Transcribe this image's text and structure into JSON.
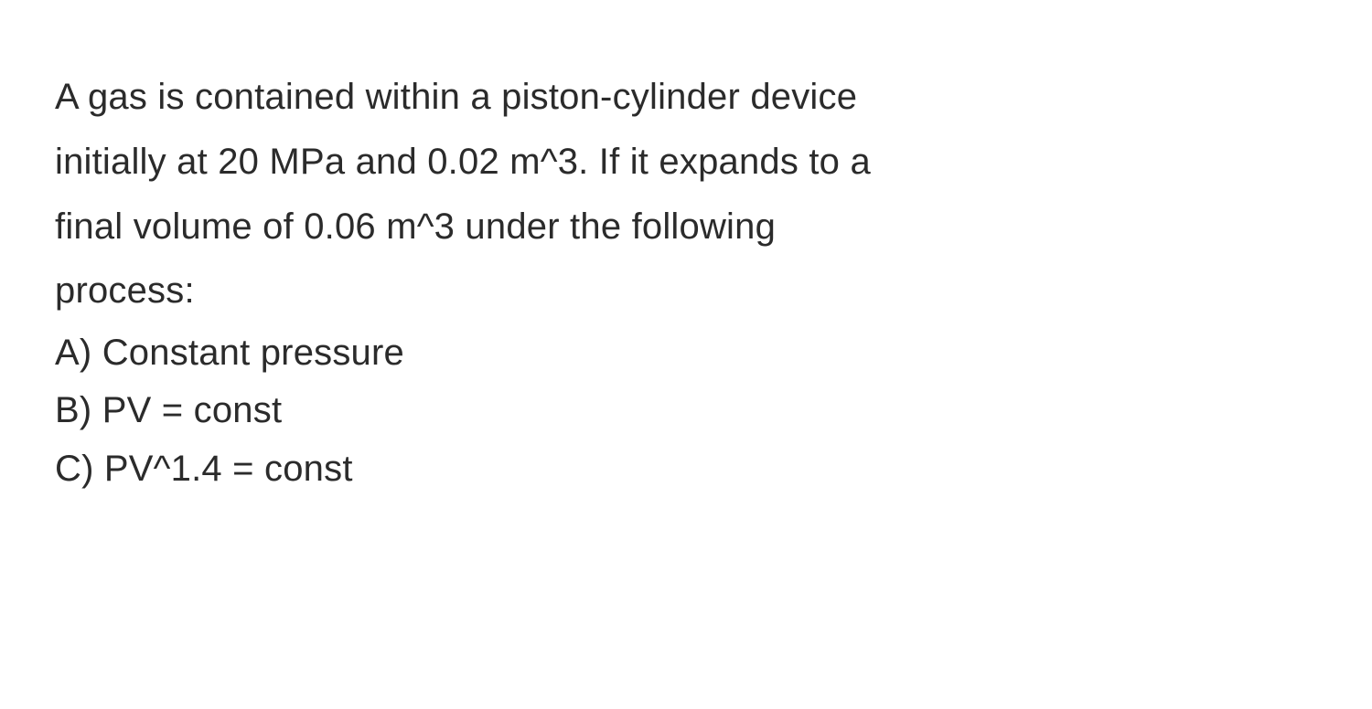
{
  "problem": {
    "text_color": "#2b2b2b",
    "background_color": "#ffffff",
    "font_size_pt": 30,
    "line_height": 1.72,
    "statement_lines": [
      "A gas is contained within a piston-cylinder device",
      "initially at 20 MPa and 0.02 m^3. If it expands to a",
      "final volume of 0.06 m^3 under the following",
      "process:"
    ],
    "options": [
      "A) Constant pressure",
      "B) PV = const",
      "C) PV^1.4 = const"
    ],
    "values": {
      "P1_MPa": 20,
      "V1_m3": 0.02,
      "V2_m3": 0.06,
      "polytropic_exponent_C": 1.4
    }
  }
}
